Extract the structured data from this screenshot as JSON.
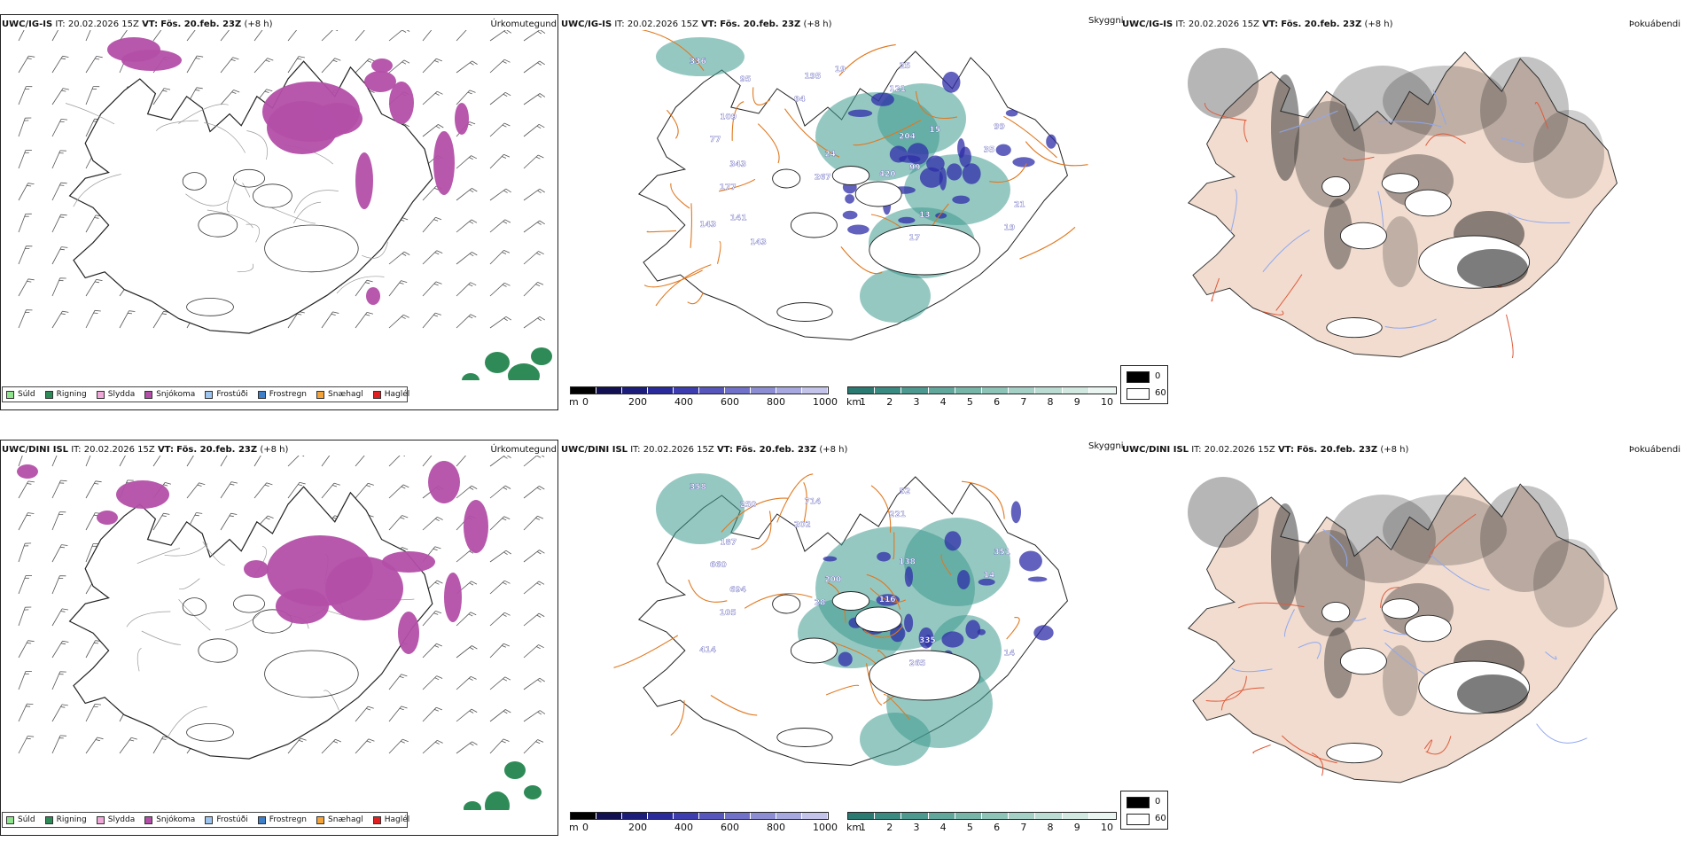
{
  "rows": [
    {
      "id": "ig",
      "model": "UWC/IG-IS",
      "it_label": "IT:",
      "it_value": "20.02.2026 15Z",
      "vt_label": "VT:",
      "vt_value": "Fös. 20.feb. 23Z",
      "lead": "(+8 h)",
      "vis_numbers": [
        "336",
        "94",
        "204",
        "420",
        "35",
        "177",
        "143",
        "195",
        "17",
        "121",
        "99",
        "343",
        "77",
        "267",
        "13",
        "25",
        "19",
        "95",
        "109",
        "24",
        "15",
        "99",
        "21",
        "143",
        "141",
        "19"
      ]
    },
    {
      "id": "dini",
      "model": "UWC/DINI ISL",
      "it_label": "IT:",
      "it_value": "20.02.2026 15Z",
      "vt_label": "VT:",
      "vt_value": "Fös. 20.feb. 23Z",
      "lead": "(+8 h)",
      "vis_numbers": [
        "358",
        "202",
        "138",
        "116",
        "14",
        "105",
        "414",
        "714",
        "265",
        "221",
        "351",
        "694",
        "660",
        "28",
        "335",
        "52",
        "14",
        "250",
        "187",
        "200"
      ]
    }
  ],
  "panels": {
    "precip_type": "Úrkomutegund",
    "visibility": "Skyggni",
    "fog": "Þokuábendi"
  },
  "precip_legend": [
    {
      "label": "Súld",
      "color": "#8fe38f"
    },
    {
      "label": "Rigning",
      "color": "#2e8b57"
    },
    {
      "label": "Slydda",
      "color": "#f0a8d8"
    },
    {
      "label": "Snjókoma",
      "color": "#b34fa8"
    },
    {
      "label": "Frostúði",
      "color": "#9ec5f0"
    },
    {
      "label": "Frostregn",
      "color": "#3d7fc9"
    },
    {
      "label": "Snæhagl",
      "color": "#f2a33a"
    },
    {
      "label": "Haglél",
      "color": "#e02020"
    }
  ],
  "cloud_base_scale": {
    "unit": "m",
    "ticks": [
      "0",
      "200",
      "400",
      "600",
      "800",
      "1000"
    ],
    "colors": [
      "#000000",
      "#121050",
      "#1c1c7a",
      "#2a2a9a",
      "#3d3db0",
      "#5656bd",
      "#7171c9",
      "#8d8dd4",
      "#a8a8e0",
      "#c4c4ea"
    ]
  },
  "visibility_scale": {
    "unit": "km",
    "ticks": [
      "1",
      "2",
      "3",
      "4",
      "5",
      "6",
      "7",
      "8",
      "9",
      "10"
    ],
    "colors": [
      "#2b7a72",
      "#3a8a82",
      "#4d998f",
      "#61a79c",
      "#78b5a9",
      "#8ec3b7",
      "#a4d0c5",
      "#bbdcd3",
      "#d2e9e2",
      "#eaf5f1"
    ]
  },
  "fog_scale": {
    "high": "0",
    "low": "60"
  },
  "colors": {
    "snow": "#b34fa8",
    "rain": "#2e8b57",
    "vis": "#3f9a90",
    "cloud": "#2d2da8",
    "road": "#e0781f",
    "fogland": "#f1dccf",
    "fogroad": "#e05a3a",
    "river": "#8fa8f0"
  }
}
